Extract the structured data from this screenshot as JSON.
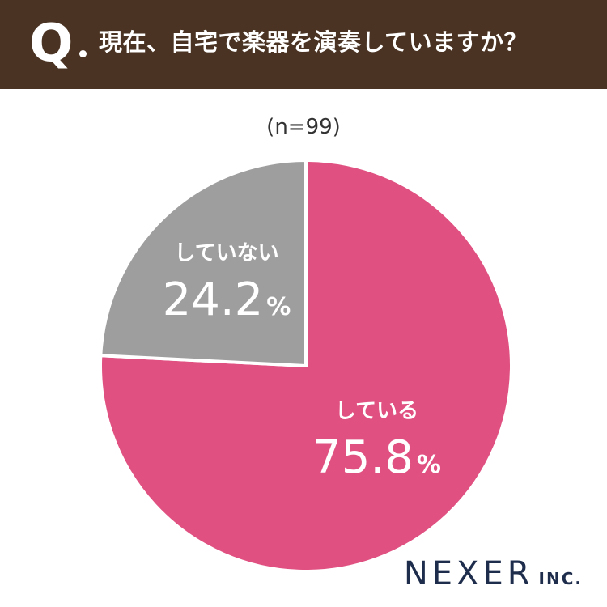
{
  "header": {
    "q_mark": "Q",
    "question": "現在、自宅で楽器を演奏していますか？"
  },
  "sample_size": "(n=99)",
  "chart_data": {
    "type": "pie",
    "title": "現在、自宅で楽器を演奏していますか？",
    "slices": [
      {
        "label": "している",
        "value": 75.8,
        "display": "75.8",
        "unit": "%",
        "color": "#e05080"
      },
      {
        "label": "していない",
        "value": 24.2,
        "display": "24.2",
        "unit": "%",
        "color": "#9e9e9e"
      }
    ],
    "start": "12 o'clock",
    "direction": "clockwise"
  },
  "logo": {
    "main": "NEXER",
    "sub": "INC."
  }
}
